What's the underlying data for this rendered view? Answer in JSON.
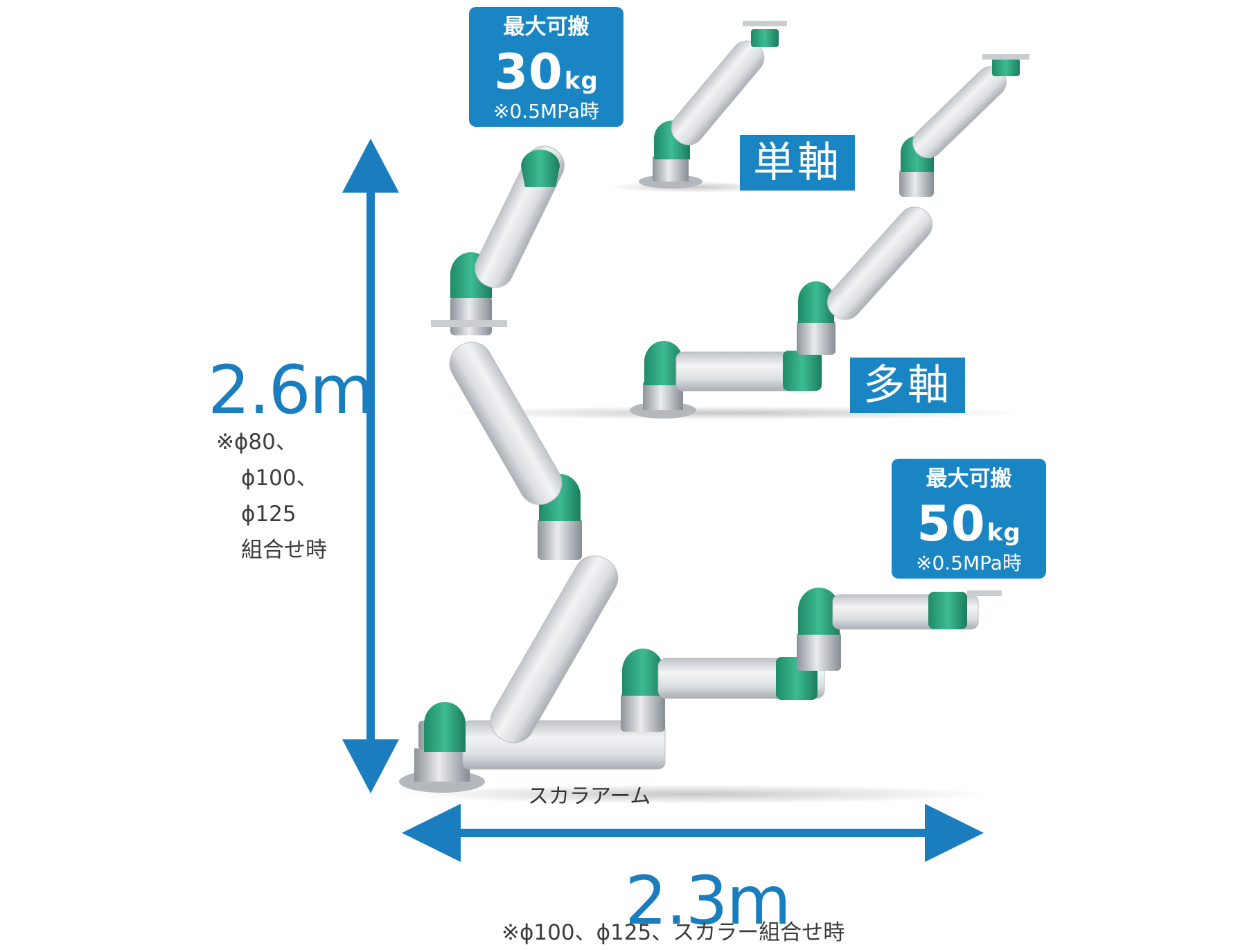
{
  "colors": {
    "accent_blue": "#1a85c3",
    "arm_green": "#2f9e7c",
    "arm_gray": "#d8dadd"
  },
  "payload_30": {
    "title": "最大可搬",
    "value": "30",
    "unit": "kg",
    "condition": "※0.5MPa時"
  },
  "payload_50": {
    "title": "最大可搬",
    "value": "50",
    "unit": "kg",
    "condition": "※0.5MPa時"
  },
  "types": {
    "single_axis": "単軸",
    "multi_axis": "多軸",
    "scara": "スカラアーム"
  },
  "height": {
    "value": "2.6m",
    "note_lines": [
      "※ϕ80、",
      "ϕ100、",
      "ϕ125",
      "組合せ時"
    ]
  },
  "width": {
    "value": "2.3m",
    "note": "※ϕ100、ϕ125、スカラー組合せ時"
  }
}
